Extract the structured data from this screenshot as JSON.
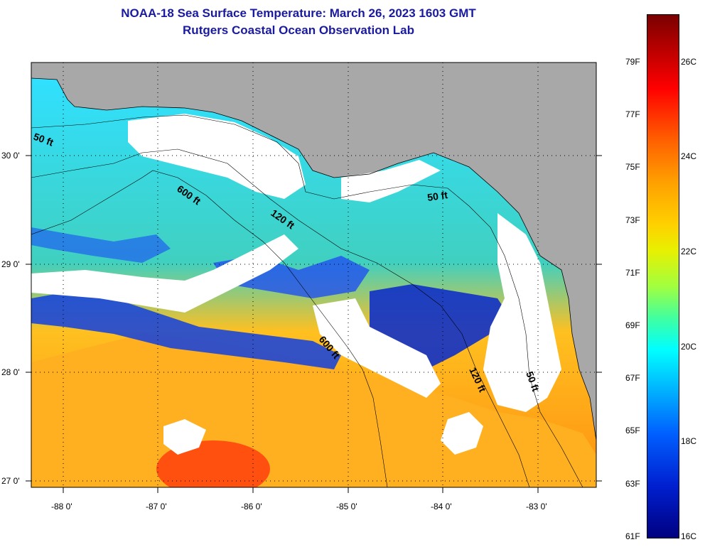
{
  "title": {
    "line1": "NOAA-18 Sea Surface Temperature:  March 26, 2023 1603 GMT",
    "line2": "Rutgers Coastal Ocean Observation Lab"
  },
  "map": {
    "lat_ticks": [
      "30 0'",
      "29 0'",
      "28 0'",
      "27 0'"
    ],
    "lon_ticks": [
      "-88 0'",
      "-87 0'",
      "-86 0'",
      "-85 0'",
      "-84 0'",
      "-83 0'"
    ],
    "contour_labels": [
      "50 ft",
      "600 ft",
      "120 ft",
      "50 ft",
      "600 ft",
      "120 ft",
      "50 ft"
    ],
    "colors": {
      "land": "#a8a8a8",
      "cloud": "#ffffff",
      "ocean_warm": "#ffa020",
      "ocean_cool": "#00c8ff"
    }
  },
  "colorbar": {
    "fahrenheit_labels": [
      "79F",
      "77F",
      "75F",
      "73F",
      "71F",
      "69F",
      "67F",
      "65F",
      "63F",
      "61F"
    ],
    "celsius_labels": [
      "26C",
      "24C",
      "22C",
      "20C",
      "18C",
      "16C"
    ]
  }
}
